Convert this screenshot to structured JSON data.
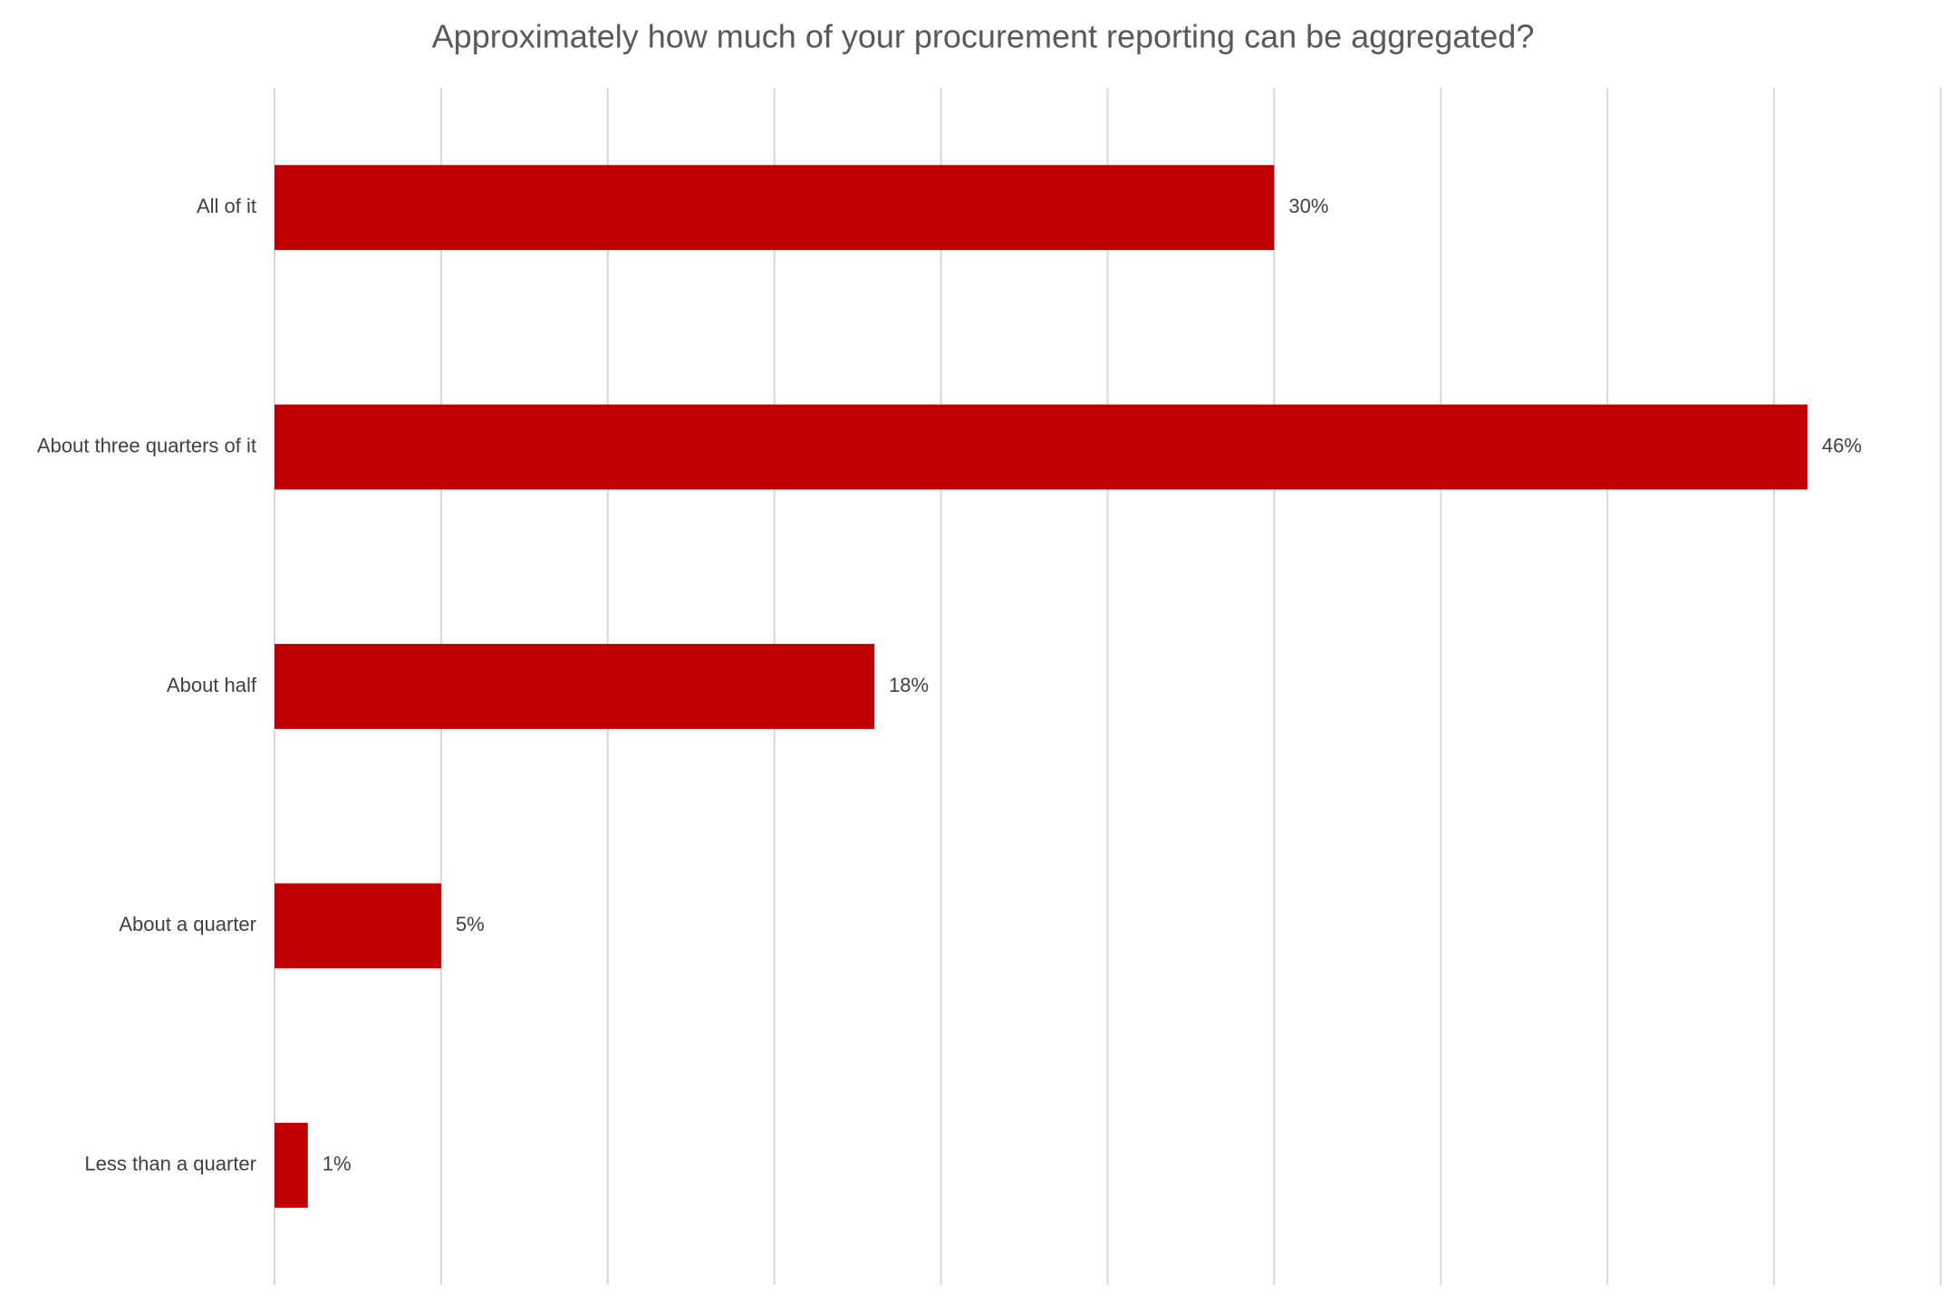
{
  "chart_data": {
    "type": "bar",
    "orientation": "horizontal",
    "title": "Approximately how much of your procurement reporting can be aggregated?",
    "categories": [
      "All of it",
      "About three quarters of it",
      "About half",
      "About a quarter",
      "Less than a quarter"
    ],
    "values": [
      30,
      46,
      18,
      5,
      1
    ],
    "value_labels": [
      "30%",
      "46%",
      "18%",
      "5%",
      "1%"
    ],
    "color": "#c00000",
    "xlim": [
      0,
      50
    ],
    "xticks": [
      0,
      5,
      10,
      15,
      20,
      25,
      30,
      35,
      40,
      45,
      50
    ],
    "grid": true
  }
}
